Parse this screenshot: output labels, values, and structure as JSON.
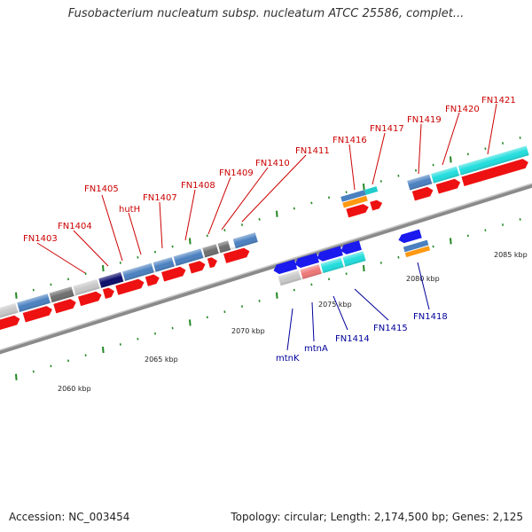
{
  "title": "Fusobacterium nucleatum subsp. nucleatum ATCC 25586, complet...",
  "accession": "Accession: NC_003454",
  "summary": "Topology: circular; Length: 2,174,500 bp; Genes: 2,125",
  "colors": {
    "label_forward": "#cc0000",
    "label_reverse": "#000099",
    "backbone": "#888888",
    "tick": "#228822",
    "cds_red": "#ee1111"
  },
  "axis": {
    "tick_labels": [
      {
        "kbp": 2060,
        "label": "2060 kbp"
      },
      {
        "kbp": 2065,
        "label": "2065 kbp"
      },
      {
        "kbp": 2070,
        "label": "2070 kbp"
      },
      {
        "kbp": 2075,
        "label": "2075 kbp"
      },
      {
        "kbp": 2080,
        "label": "2080 kbp"
      },
      {
        "kbp": 2085,
        "label": "2085 kbp"
      }
    ]
  },
  "genes_forward_upper": [
    {
      "label": "FN1403",
      "color": "#c8c8c8"
    },
    {
      "label": "FN1404",
      "color": "#4a80c0"
    },
    {
      "label": "FN1405",
      "color": "#6e6e6e"
    },
    {
      "label": "hutH",
      "color": "#c8c8c8"
    },
    {
      "label": "FN1407",
      "color": "#0a0a6a"
    },
    {
      "label": "FN1408",
      "color": "#4a80c0"
    },
    {
      "label": "FN1409",
      "color": "#4a80c0"
    },
    {
      "label": "FN1410",
      "color": "#4a80c0"
    },
    {
      "label": "FN1411",
      "color": "#6e6e6e"
    },
    {
      "label": "FN1416",
      "color": "#4a80c0"
    },
    {
      "label": "FN1417",
      "color": "#22cccc"
    },
    {
      "label": "FN1419",
      "color": "#4a80c0"
    },
    {
      "label": "FN1420",
      "color": "#22dddd"
    },
    {
      "label": "FN1421",
      "color": "#22dddd"
    }
  ],
  "genes_reverse": [
    {
      "label": "mtnK",
      "color": "#c8c8c8"
    },
    {
      "label": "mtnA",
      "color": "#ee7777"
    },
    {
      "label": "FN1414",
      "color": "#22dddd"
    },
    {
      "label": "FN1415",
      "color": "#22dddd"
    },
    {
      "label": "FN1418",
      "color": "#4a80c0"
    }
  ]
}
